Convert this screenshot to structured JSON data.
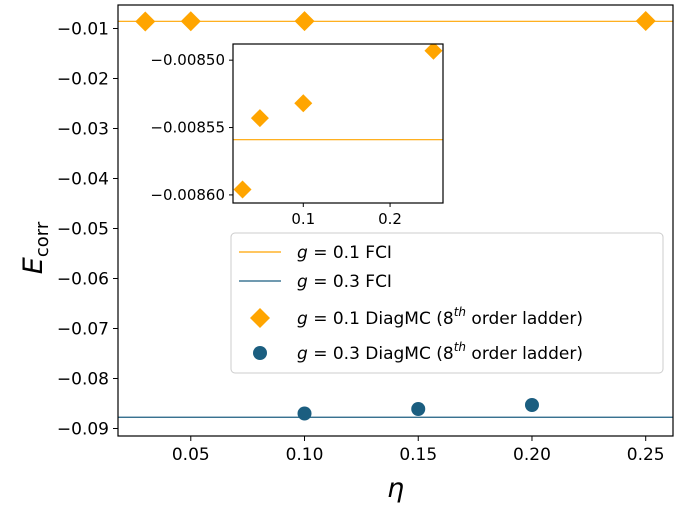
{
  "chart_data": [
    {
      "id": "main",
      "type": "scatter",
      "xlabel": "η",
      "ylabel": "E",
      "ylabel_sub": "corr",
      "xlim": [
        0.018,
        0.262
      ],
      "ylim": [
        -0.0915,
        -0.0053
      ],
      "xticks": [
        0.05,
        0.1,
        0.15,
        0.2,
        0.25
      ],
      "xtick_labels": [
        "0.05",
        "0.10",
        "0.15",
        "0.20",
        "0.25"
      ],
      "yticks": [
        -0.01,
        -0.02,
        -0.03,
        -0.04,
        -0.05,
        -0.06,
        -0.07,
        -0.08,
        -0.09
      ],
      "ytick_labels": [
        "−0.01",
        "−0.02",
        "−0.03",
        "−0.04",
        "−0.05",
        "−0.06",
        "−0.07",
        "−0.08",
        "−0.09"
      ],
      "hlines": [
        {
          "y": -0.008559,
          "color": "#FFA500",
          "label_prefix": "g",
          "label_rest": " = 0.1 FCI"
        },
        {
          "y": -0.08775,
          "color": "#1B5E80",
          "label_prefix": "g",
          "label_rest": " = 0.3 FCI"
        }
      ],
      "series": [
        {
          "color": "#FFA500",
          "marker": "diamond",
          "label_prefix": "g",
          "label_mid": " = 0.1 DiagMC (8",
          "label_sup": "th",
          "label_end": " order ladder)",
          "x": [
            0.03,
            0.05,
            0.1,
            0.25
          ],
          "y": [
            -0.008596,
            -0.008543,
            -0.008532,
            -0.008493
          ]
        },
        {
          "color": "#1B5E80",
          "marker": "circle",
          "label_prefix": "g",
          "label_mid": " = 0.3 DiagMC (8",
          "label_sup": "th",
          "label_end": " order ladder)",
          "x": [
            0.1,
            0.15,
            0.2
          ],
          "y": [
            -0.087,
            -0.0861,
            -0.0853
          ]
        }
      ],
      "legend_position": "center-right"
    },
    {
      "id": "inset",
      "type": "scatter",
      "xlim": [
        0.019,
        0.261
      ],
      "ylim": [
        -0.008606,
        -0.008488
      ],
      "xticks": [
        0.1,
        0.2
      ],
      "xtick_labels": [
        "0.1",
        "0.2"
      ],
      "yticks": [
        -0.0085,
        -0.00855,
        -0.0086
      ],
      "ytick_labels": [
        "−0.00850",
        "−0.00855",
        "−0.00860"
      ],
      "hlines": [
        {
          "y": -0.008559,
          "color": "#FFA500"
        }
      ],
      "series": [
        {
          "color": "#FFA500",
          "marker": "diamond",
          "x": [
            0.03,
            0.05,
            0.1,
            0.25
          ],
          "y": [
            -0.008596,
            -0.008543,
            -0.008532,
            -0.008493
          ]
        }
      ],
      "position": "upper-center"
    }
  ]
}
